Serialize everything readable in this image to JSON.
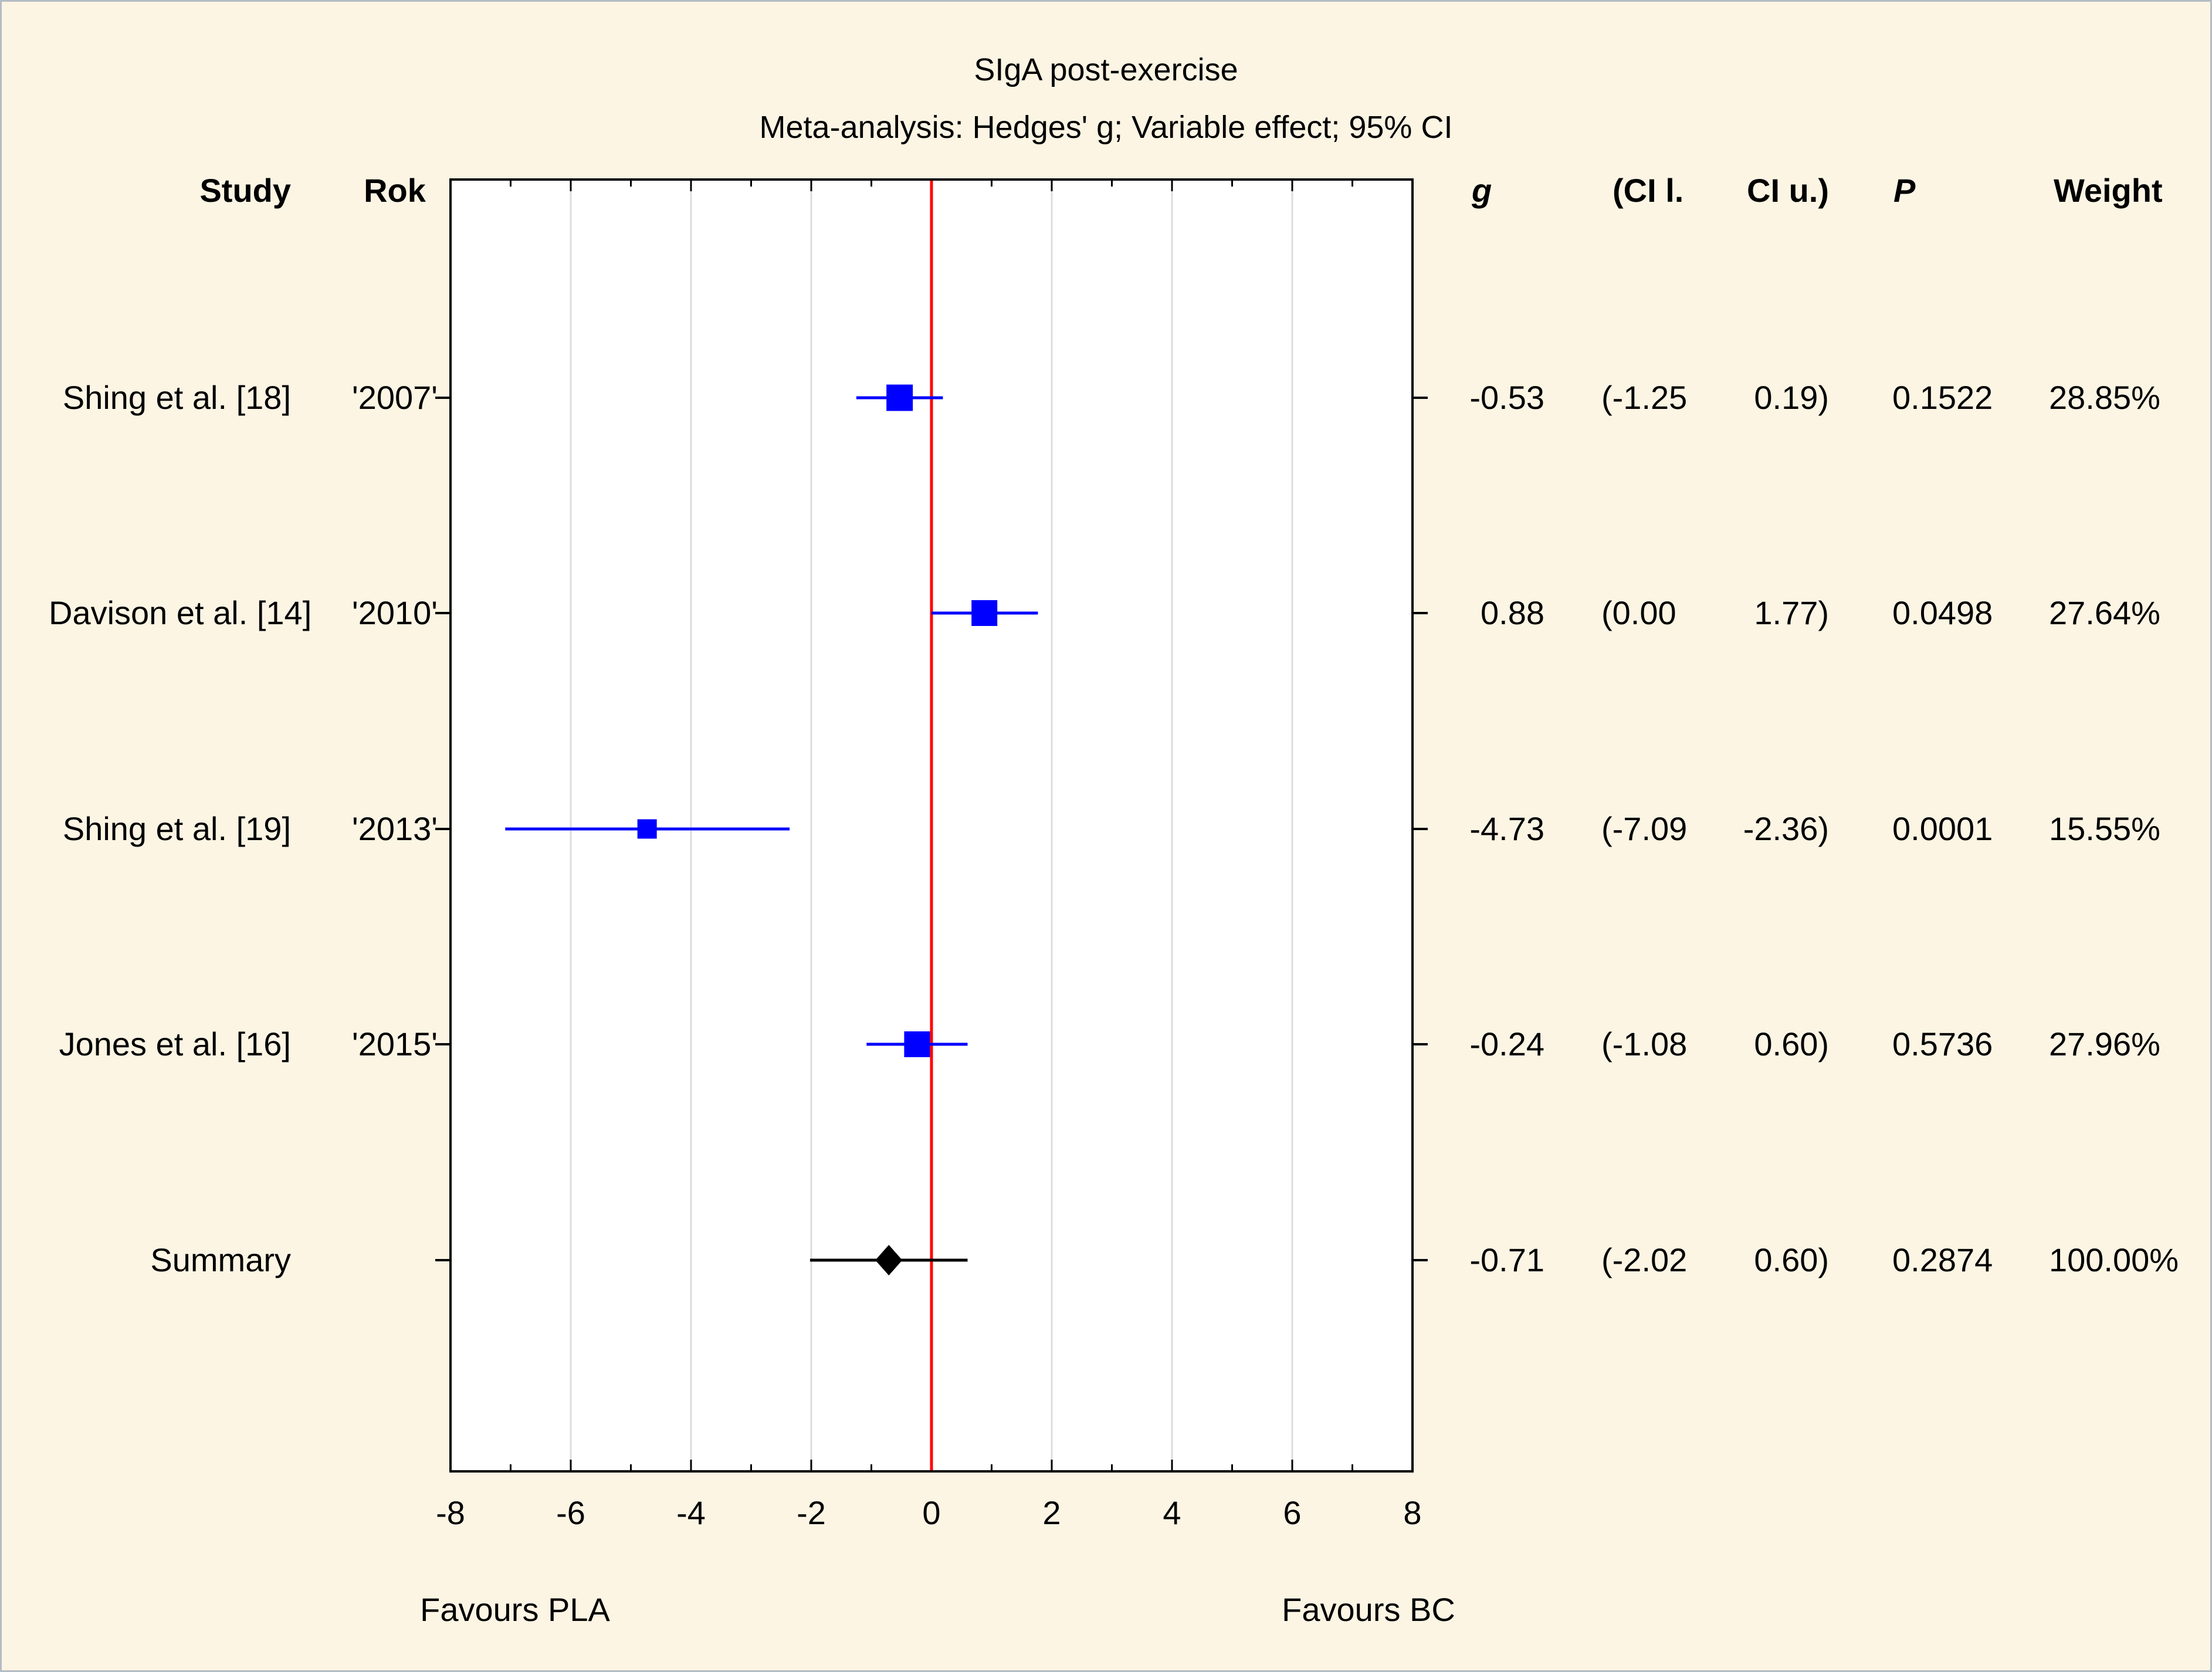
{
  "colors": {
    "background": "#fcf5e4",
    "plot_background": "#ffffff",
    "frame": "#000000",
    "grid": "#dcdcdc",
    "zero_line": "#ff0000",
    "marker": "#0000ff",
    "summary": "#000000",
    "text": "#000000"
  },
  "table": {
    "headers": {
      "study": "Study",
      "rok": "Rok",
      "g": "g",
      "ci_l": "(CI l.",
      "ci_u": "CI u.)",
      "p": "P",
      "weight": "Weight"
    },
    "rows": [
      {
        "study": "Shing et al. [18]",
        "rok": "'2007'",
        "g": "-0.53",
        "ci_l": "(-1.25",
        "ci_u": "0.19)",
        "p": "0.1522",
        "weight": "28.85%"
      },
      {
        "study": "Davison et al. [14]",
        "rok": "'2010'",
        "g": "0.88",
        "ci_l": "(0.00",
        "ci_u": "1.77)",
        "p": "0.0498",
        "weight": "27.64%"
      },
      {
        "study": "Shing et al. [19]",
        "rok": "'2013'",
        "g": "-4.73",
        "ci_l": "(-7.09",
        "ci_u": "-2.36)",
        "p": "0.0001",
        "weight": "15.55%"
      },
      {
        "study": "Jones et al. [16]",
        "rok": "'2015'",
        "g": "-0.24",
        "ci_l": "(-1.08",
        "ci_u": "0.60)",
        "p": "0.5736",
        "weight": "27.96%"
      },
      {
        "study": "Summary",
        "rok": "",
        "g": "-0.71",
        "ci_l": "(-2.02",
        "ci_u": "0.60)",
        "p": "0.2874",
        "weight": "100.00%"
      }
    ]
  },
  "chart_data": {
    "type": "forest",
    "title": "SIgA post-exercise",
    "subtitle": "Meta-analysis: Hedges' g; Variable effect; 95% CI",
    "effect_measure": "Hedges' g",
    "model": "Variable effect",
    "ci_level": "95% CI",
    "xlim": [
      -8,
      8
    ],
    "x_ticks": [
      -8,
      -6,
      -4,
      -2,
      0,
      2,
      4,
      6,
      8
    ],
    "minor_tick_step": 1,
    "zero_line_x": 0,
    "grid": true,
    "xlabel_left": "Favours PLA",
    "xlabel_right": "Favours BC",
    "series": [
      {
        "name": "Shing et al. [18] '2007'",
        "g": -0.53,
        "ci": [
          -1.25,
          0.19
        ],
        "p": 0.1522,
        "weight_pct": 28.85,
        "marker": "square"
      },
      {
        "name": "Davison et al. [14] '2010'",
        "g": 0.88,
        "ci": [
          0.0,
          1.77
        ],
        "p": 0.0498,
        "weight_pct": 27.64,
        "marker": "square"
      },
      {
        "name": "Shing et al. [19] '2013'",
        "g": -4.73,
        "ci": [
          -7.09,
          -2.36
        ],
        "p": 0.0001,
        "weight_pct": 15.55,
        "marker": "square"
      },
      {
        "name": "Jones et al. [16] '2015'",
        "g": -0.24,
        "ci": [
          -1.08,
          0.6
        ],
        "p": 0.5736,
        "weight_pct": 27.96,
        "marker": "square"
      },
      {
        "name": "Summary",
        "g": -0.71,
        "ci": [
          -2.02,
          0.6
        ],
        "p": 0.2874,
        "weight_pct": 100.0,
        "marker": "diamond"
      }
    ]
  }
}
